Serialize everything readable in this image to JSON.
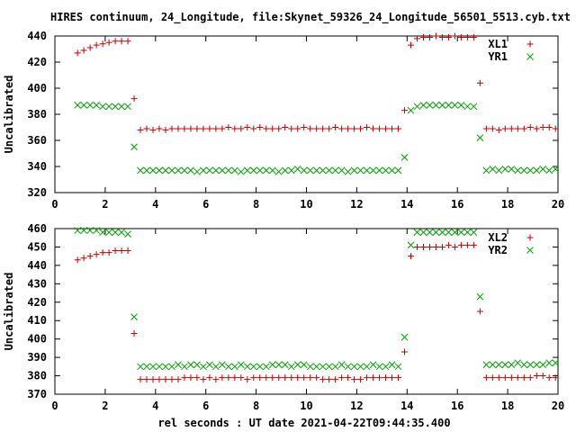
{
  "title": "HIRES continuum, 24_Longitude, file:Skynet_59326_24_Longitude_56501_5513.cyb.txt",
  "xlabel": "rel seconds : UT date 2021-04-22T09:44:35.400",
  "chart_data": [
    {
      "type": "scatter",
      "ylabel": "Uncalibrated",
      "xlim": [
        0,
        20
      ],
      "ylim": [
        320,
        440
      ],
      "xticks": [
        "0",
        "2",
        "4",
        "6",
        "8",
        "10",
        "12",
        "14",
        "16",
        "18",
        "20"
      ],
      "yticks": [
        "320",
        "340",
        "360",
        "380",
        "400",
        "420",
        "440"
      ],
      "legend_position": "top-right",
      "series": [
        {
          "name": "XL1",
          "marker": "plus",
          "color": "#c00000",
          "x": [
            0.9,
            1.15,
            1.4,
            1.65,
            1.9,
            2.15,
            2.4,
            2.65,
            2.9,
            3.15,
            3.4,
            3.65,
            3.9,
            4.15,
            4.4,
            4.65,
            4.9,
            5.15,
            5.4,
            5.65,
            5.9,
            6.15,
            6.4,
            6.65,
            6.9,
            7.15,
            7.4,
            7.65,
            7.9,
            8.15,
            8.4,
            8.65,
            8.9,
            9.15,
            9.4,
            9.65,
            9.9,
            10.15,
            10.4,
            10.65,
            10.9,
            11.15,
            11.4,
            11.65,
            11.9,
            12.15,
            12.4,
            12.65,
            12.9,
            13.15,
            13.4,
            13.65,
            13.9,
            14.15,
            14.4,
            14.65,
            14.9,
            15.15,
            15.4,
            15.65,
            15.9,
            16.15,
            16.4,
            16.65,
            16.9,
            17.15,
            17.4,
            17.65,
            17.9,
            18.15,
            18.4,
            18.65,
            18.9,
            19.15,
            19.4,
            19.65,
            19.9
          ],
          "y": [
            427,
            429,
            431,
            433,
            434,
            435,
            436,
            436,
            436,
            392,
            368,
            369,
            368,
            369,
            368,
            369,
            369,
            369,
            369,
            369,
            369,
            369,
            369,
            369,
            370,
            369,
            369,
            370,
            369,
            370,
            369,
            369,
            369,
            370,
            369,
            369,
            370,
            369,
            369,
            369,
            369,
            370,
            369,
            369,
            369,
            369,
            370,
            369,
            369,
            369,
            369,
            369,
            383,
            433,
            438,
            439,
            439,
            440,
            439,
            439,
            440,
            439,
            439,
            439,
            404,
            369,
            369,
            368,
            369,
            369,
            369,
            369,
            370,
            369,
            370,
            370,
            369
          ]
        },
        {
          "name": "YR1",
          "marker": "cross",
          "color": "#00a000",
          "x": [
            0.9,
            1.15,
            1.4,
            1.65,
            1.9,
            2.15,
            2.4,
            2.65,
            2.9,
            3.15,
            3.4,
            3.65,
            3.9,
            4.15,
            4.4,
            4.65,
            4.9,
            5.15,
            5.4,
            5.65,
            5.9,
            6.15,
            6.4,
            6.65,
            6.9,
            7.15,
            7.4,
            7.65,
            7.9,
            8.15,
            8.4,
            8.65,
            8.9,
            9.15,
            9.4,
            9.65,
            9.9,
            10.15,
            10.4,
            10.65,
            10.9,
            11.15,
            11.4,
            11.65,
            11.9,
            12.15,
            12.4,
            12.65,
            12.9,
            13.15,
            13.4,
            13.65,
            13.9,
            14.15,
            14.4,
            14.65,
            14.9,
            15.15,
            15.4,
            15.65,
            15.9,
            16.15,
            16.4,
            16.65,
            16.9,
            17.15,
            17.4,
            17.65,
            17.9,
            18.15,
            18.4,
            18.65,
            18.9,
            19.15,
            19.4,
            19.65,
            19.9
          ],
          "y": [
            387,
            387,
            387,
            387,
            386,
            386,
            386,
            386,
            386,
            355,
            337,
            337,
            337,
            337,
            337,
            337,
            337,
            337,
            337,
            336,
            337,
            337,
            337,
            337,
            337,
            337,
            336,
            337,
            337,
            337,
            337,
            337,
            336,
            337,
            337,
            338,
            337,
            337,
            337,
            337,
            337,
            337,
            337,
            336,
            337,
            337,
            337,
            337,
            337,
            337,
            337,
            337,
            347,
            383,
            386,
            387,
            387,
            387,
            387,
            387,
            387,
            387,
            386,
            386,
            362,
            337,
            338,
            337,
            338,
            338,
            337,
            337,
            337,
            337,
            338,
            337,
            338
          ]
        }
      ]
    },
    {
      "type": "scatter",
      "ylabel": "Uncalibrated",
      "xlim": [
        0,
        20
      ],
      "ylim": [
        370,
        460
      ],
      "xticks": [
        "0",
        "2",
        "4",
        "6",
        "8",
        "10",
        "12",
        "14",
        "16",
        "18",
        "20"
      ],
      "yticks": [
        "370",
        "380",
        "390",
        "400",
        "410",
        "420",
        "430",
        "440",
        "450",
        "460"
      ],
      "legend_position": "top-right",
      "series": [
        {
          "name": "XL2",
          "marker": "plus",
          "color": "#c00000",
          "x": [
            0.9,
            1.15,
            1.4,
            1.65,
            1.9,
            2.15,
            2.4,
            2.65,
            2.9,
            3.15,
            3.4,
            3.65,
            3.9,
            4.15,
            4.4,
            4.65,
            4.9,
            5.15,
            5.4,
            5.65,
            5.9,
            6.15,
            6.4,
            6.65,
            6.9,
            7.15,
            7.4,
            7.65,
            7.9,
            8.15,
            8.4,
            8.65,
            8.9,
            9.15,
            9.4,
            9.65,
            9.9,
            10.15,
            10.4,
            10.65,
            10.9,
            11.15,
            11.4,
            11.65,
            11.9,
            12.15,
            12.4,
            12.65,
            12.9,
            13.15,
            13.4,
            13.65,
            13.9,
            14.15,
            14.4,
            14.65,
            14.9,
            15.15,
            15.4,
            15.65,
            15.9,
            16.15,
            16.4,
            16.65,
            16.9,
            17.15,
            17.4,
            17.65,
            17.9,
            18.15,
            18.4,
            18.65,
            18.9,
            19.15,
            19.4,
            19.65,
            19.9
          ],
          "y": [
            443,
            444,
            445,
            446,
            447,
            447,
            448,
            448,
            448,
            403,
            378,
            378,
            378,
            378,
            378,
            378,
            378,
            379,
            379,
            379,
            378,
            379,
            378,
            379,
            379,
            379,
            379,
            378,
            379,
            379,
            379,
            379,
            379,
            379,
            379,
            379,
            379,
            379,
            379,
            378,
            378,
            378,
            379,
            379,
            378,
            378,
            379,
            379,
            379,
            379,
            379,
            379,
            393,
            445,
            450,
            450,
            450,
            450,
            450,
            451,
            450,
            451,
            451,
            451,
            415,
            379,
            379,
            379,
            379,
            379,
            379,
            379,
            379,
            380,
            380,
            379,
            379
          ]
        },
        {
          "name": "YR2",
          "marker": "cross",
          "color": "#00a000",
          "x": [
            0.9,
            1.15,
            1.4,
            1.65,
            1.9,
            2.15,
            2.4,
            2.65,
            2.9,
            3.15,
            3.4,
            3.65,
            3.9,
            4.15,
            4.4,
            4.65,
            4.9,
            5.15,
            5.4,
            5.65,
            5.9,
            6.15,
            6.4,
            6.65,
            6.9,
            7.15,
            7.4,
            7.65,
            7.9,
            8.15,
            8.4,
            8.65,
            8.9,
            9.15,
            9.4,
            9.65,
            9.9,
            10.15,
            10.4,
            10.65,
            10.9,
            11.15,
            11.4,
            11.65,
            11.9,
            12.15,
            12.4,
            12.65,
            12.9,
            13.15,
            13.4,
            13.65,
            13.9,
            14.15,
            14.4,
            14.65,
            14.9,
            15.15,
            15.4,
            15.65,
            15.9,
            16.15,
            16.4,
            16.65,
            16.9,
            17.15,
            17.4,
            17.65,
            17.9,
            18.15,
            18.4,
            18.65,
            18.9,
            19.15,
            19.4,
            19.65,
            19.9
          ],
          "y": [
            459,
            459,
            459,
            459,
            458,
            458,
            458,
            458,
            457,
            412,
            385,
            385,
            385,
            385,
            385,
            385,
            386,
            385,
            386,
            386,
            385,
            386,
            385,
            386,
            385,
            385,
            386,
            385,
            385,
            385,
            385,
            386,
            386,
            386,
            385,
            386,
            386,
            385,
            385,
            385,
            385,
            385,
            386,
            385,
            385,
            385,
            385,
            386,
            385,
            385,
            386,
            385,
            401,
            451,
            458,
            458,
            458,
            458,
            458,
            458,
            458,
            458,
            458,
            458,
            423,
            386,
            386,
            386,
            386,
            386,
            387,
            386,
            386,
            386,
            386,
            387,
            387
          ]
        }
      ]
    }
  ]
}
